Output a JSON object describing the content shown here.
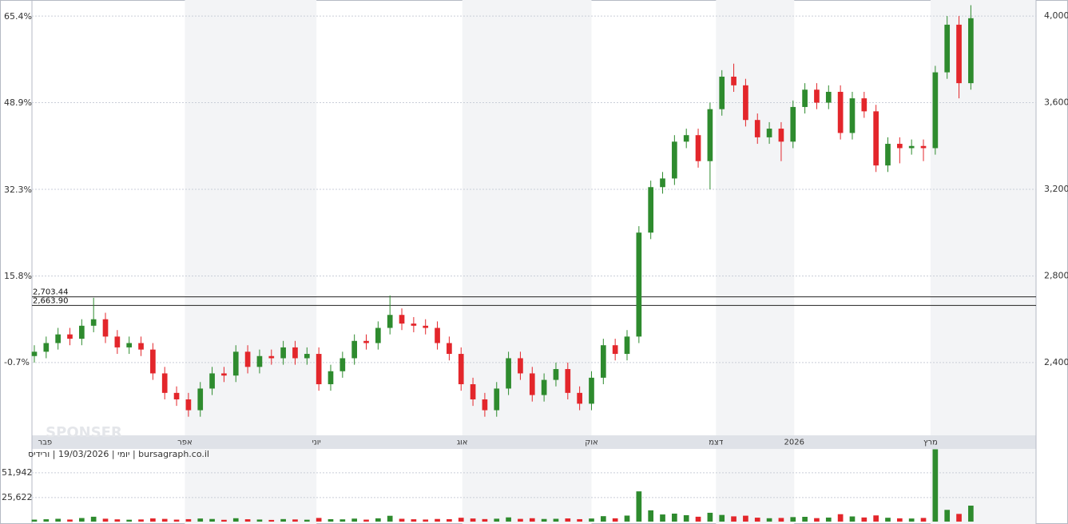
{
  "chart_data": {
    "type": "candlestick",
    "watermark": "SPONSER",
    "source_label": "יומי | 19/03/2026 | ורידיס | bursagraph.co.il",
    "colors": {
      "up": "#2e8b2e",
      "down": "#e3262b"
    },
    "xlim": [
      -0.2,
      84.5
    ],
    "xticks": [
      {
        "value": 0.9,
        "label": "פבר"
      },
      {
        "value": 12.7,
        "label": "אפר"
      },
      {
        "value": 23.8,
        "label": "יוני"
      },
      {
        "value": 36.1,
        "label": "אוג"
      },
      {
        "value": 47.0,
        "label": "אוק"
      },
      {
        "value": 57.5,
        "label": "דצמ"
      },
      {
        "value": 64.1,
        "label": "2026"
      },
      {
        "value": 75.6,
        "label": "מרץ"
      }
    ],
    "ylim": [
      2064,
      4074
    ],
    "yticks": [
      {
        "value": 4000,
        "label": "4,000"
      },
      {
        "value": 3600,
        "label": "3,600"
      },
      {
        "value": 3200,
        "label": "3,200"
      },
      {
        "value": 2800,
        "label": "2,800"
      },
      {
        "value": 2400,
        "label": "2,400"
      }
    ],
    "y2lim": [
      -14.6,
      68.6
    ],
    "y2ticks": [
      {
        "value": 65.4,
        "label": "65.4%"
      },
      {
        "value": 48.9,
        "label": "48.9%"
      },
      {
        "value": 32.3,
        "label": "32.3%"
      },
      {
        "value": 15.8,
        "label": "15.8%"
      },
      {
        "value": -0.7,
        "label": "-0.7%"
      }
    ],
    "hlines": [
      {
        "value": 2703.44,
        "label": "2,703.44"
      },
      {
        "value": 2663.9,
        "label": "2,663.90"
      }
    ],
    "open": [
      2430,
      2450,
      2490,
      2530,
      2510,
      2570,
      2600,
      2520,
      2470,
      2490,
      2460,
      2350,
      2260,
      2230,
      2180,
      2280,
      2350,
      2340,
      2450,
      2380,
      2430,
      2420,
      2470,
      2420,
      2440,
      2300,
      2360,
      2420,
      2500,
      2490,
      2560,
      2620,
      2580,
      2570,
      2560,
      2490,
      2440,
      2300,
      2230,
      2180,
      2280,
      2420,
      2350,
      2250,
      2320,
      2370,
      2260,
      2210,
      2330,
      2480,
      2440,
      2520,
      3000,
      3210,
      3250,
      3420,
      3450,
      3330,
      3570,
      3720,
      3680,
      3520,
      3440,
      3480,
      3420,
      3580,
      3660,
      3600,
      3650,
      3460,
      3620,
      3560,
      3310,
      3410,
      3390,
      3400,
      3390,
      3740,
      3960,
      3690
    ],
    "high": [
      2480,
      2520,
      2560,
      2560,
      2600,
      2699,
      2630,
      2550,
      2520,
      2520,
      2490,
      2380,
      2290,
      2260,
      2310,
      2380,
      2380,
      2480,
      2480,
      2460,
      2460,
      2500,
      2500,
      2470,
      2470,
      2390,
      2450,
      2530,
      2530,
      2590,
      2710,
      2650,
      2610,
      2600,
      2590,
      2520,
      2470,
      2330,
      2260,
      2310,
      2450,
      2450,
      2380,
      2350,
      2400,
      2400,
      2290,
      2360,
      2510,
      2510,
      2550,
      3030,
      3240,
      3280,
      3450,
      3480,
      3480,
      3600,
      3750,
      3780,
      3710,
      3550,
      3510,
      3510,
      3610,
      3690,
      3690,
      3680,
      3680,
      3650,
      3650,
      3590,
      3440,
      3440,
      3430,
      3430,
      3770,
      4000,
      4000,
      4050
    ],
    "low": [
      2400,
      2420,
      2460,
      2480,
      2480,
      2540,
      2490,
      2440,
      2440,
      2430,
      2320,
      2230,
      2200,
      2150,
      2150,
      2250,
      2310,
      2310,
      2350,
      2350,
      2390,
      2390,
      2390,
      2390,
      2270,
      2270,
      2330,
      2390,
      2460,
      2460,
      2530,
      2550,
      2540,
      2530,
      2460,
      2410,
      2270,
      2200,
      2150,
      2150,
      2250,
      2320,
      2220,
      2220,
      2290,
      2230,
      2180,
      2180,
      2300,
      2410,
      2410,
      2490,
      2970,
      3180,
      3220,
      3390,
      3300,
      3200,
      3540,
      3650,
      3490,
      3410,
      3410,
      3330,
      3390,
      3550,
      3570,
      3570,
      3430,
      3430,
      3530,
      3280,
      3280,
      3320,
      3360,
      3330,
      3360,
      3710,
      3620,
      3660
    ],
    "close": [
      2450,
      2490,
      2530,
      2510,
      2570,
      2600,
      2520,
      2470,
      2490,
      2460,
      2350,
      2260,
      2230,
      2180,
      2280,
      2350,
      2340,
      2450,
      2380,
      2430,
      2420,
      2470,
      2420,
      2440,
      2300,
      2360,
      2420,
      2500,
      2490,
      2560,
      2620,
      2580,
      2570,
      2560,
      2490,
      2440,
      2300,
      2230,
      2180,
      2280,
      2420,
      2350,
      2250,
      2320,
      2370,
      2260,
      2210,
      2330,
      2480,
      2440,
      2520,
      3000,
      3210,
      3250,
      3420,
      3450,
      3330,
      3570,
      3720,
      3680,
      3520,
      3440,
      3480,
      3420,
      3580,
      3660,
      3600,
      3650,
      3460,
      3620,
      3560,
      3310,
      3410,
      3390,
      3400,
      3390,
      3740,
      3960,
      3690,
      3990
    ],
    "volume": {
      "ylim": [
        0,
        77400
      ],
      "yticks": [
        {
          "value": 51942,
          "label": "51,942"
        },
        {
          "value": 25622,
          "label": "25,622"
        }
      ],
      "values": [
        2100,
        2500,
        3000,
        2200,
        3800,
        5200,
        3100,
        2400,
        2000,
        2300,
        3400,
        2900,
        2100,
        2600,
        3300,
        2800,
        1900,
        3600,
        2500,
        2200,
        1800,
        2700,
        2300,
        2000,
        3900,
        2600,
        2400,
        3200,
        2100,
        3500,
        6200,
        3000,
        2500,
        2200,
        2800,
        2600,
        4100,
        3300,
        2700,
        3100,
        4500,
        2900,
        3600,
        2800,
        3000,
        3400,
        2600,
        3300,
        5800,
        3500,
        6400,
        32200,
        12000,
        7600,
        8500,
        6800,
        5200,
        9400,
        7100,
        5600,
        6300,
        4200,
        3600,
        3900,
        4800,
        5100,
        3700,
        4300,
        7900,
        5500,
        4400,
        6600,
        4100,
        3500,
        3300,
        3900,
        77000,
        12500,
        8200,
        17000
      ]
    }
  }
}
